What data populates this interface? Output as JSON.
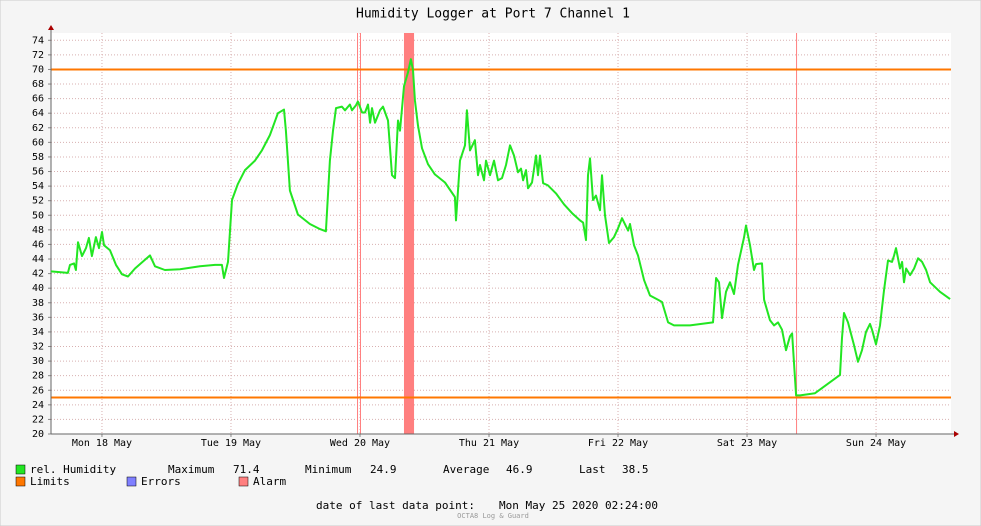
{
  "chart_data": {
    "type": "line",
    "title": "Humidity Logger at Port 7 Channel 1",
    "x": [
      0.105,
      0.236,
      0.252,
      0.283,
      0.298,
      0.314,
      0.345,
      0.376,
      0.399,
      0.422,
      0.453,
      0.477,
      0.5,
      0.516,
      0.562,
      0.609,
      0.655,
      0.702,
      0.756,
      0.795,
      0.872,
      0.911,
      0.988,
      1.105,
      1.26,
      1.376,
      1.43,
      1.446,
      1.477,
      1.508,
      1.554,
      1.609,
      1.686,
      1.74,
      1.802,
      1.864,
      1.911,
      1.926,
      1.957,
      2.019,
      2.112,
      2.19,
      2.236,
      2.267,
      2.291,
      2.314,
      2.36,
      2.384,
      2.422,
      2.438,
      2.469,
      2.484,
      2.516,
      2.539,
      2.562,
      2.578,
      2.593,
      2.616,
      2.655,
      2.678,
      2.717,
      2.748,
      2.771,
      2.795,
      2.81,
      2.841,
      2.872,
      2.895,
      2.911,
      2.926,
      2.95,
      2.981,
      3.027,
      3.081,
      3.159,
      3.236,
      3.244,
      3.275,
      3.314,
      3.329,
      3.353,
      3.391,
      3.415,
      3.43,
      3.461,
      3.477,
      3.508,
      3.539,
      3.57,
      3.601,
      3.632,
      3.663,
      3.694,
      3.725,
      3.748,
      3.764,
      3.787,
      3.802,
      3.833,
      3.864,
      3.88,
      3.895,
      3.919,
      3.957,
      4.019,
      4.081,
      4.143,
      4.205,
      4.229,
      4.252,
      4.267,
      4.283,
      4.306,
      4.329,
      4.36,
      4.376,
      4.399,
      4.43,
      4.469,
      4.5,
      4.531,
      4.578,
      4.593,
      4.624,
      4.655,
      4.702,
      4.748,
      4.81,
      4.841,
      4.888,
      4.934,
      5.058,
      5.236,
      5.26,
      5.283,
      5.306,
      5.337,
      5.368,
      5.399,
      5.43,
      5.477,
      5.492,
      5.523,
      5.554,
      5.57,
      5.616,
      5.632,
      5.678,
      5.709,
      5.74,
      5.771,
      5.802,
      5.833,
      5.849,
      5.88,
      5.911,
      6.027,
      6.128,
      6.221,
      6.236,
      6.252,
      6.283,
      6.329,
      6.36,
      6.391,
      6.422,
      6.453,
      6.469,
      6.5,
      6.531,
      6.562,
      6.593,
      6.624,
      6.64,
      6.655,
      6.686,
      6.702,
      6.717,
      6.733,
      6.764,
      6.795,
      6.826,
      6.857,
      6.888,
      6.919,
      6.996,
      7.074
    ],
    "series": [
      {
        "name": "rel. Humidity",
        "color": "#22e622",
        "values": [
          42.3,
          42.1,
          43.2,
          43.4,
          42.5,
          46.3,
          44.4,
          45.5,
          46.9,
          44.4,
          47.0,
          45.5,
          47.7,
          45.9,
          45.2,
          43.2,
          41.9,
          41.6,
          42.7,
          43.3,
          44.5,
          43.0,
          42.5,
          42.6,
          43.0,
          43.2,
          43.2,
          41.4,
          43.6,
          52.1,
          54.3,
          56.2,
          57.5,
          58.9,
          61.0,
          64.0,
          64.5,
          61.6,
          53.4,
          50.1,
          48.8,
          48.1,
          47.8,
          57.5,
          61.6,
          64.7,
          64.9,
          64.4,
          65.2,
          64.4,
          65.1,
          65.6,
          64.1,
          64.1,
          65.2,
          62.7,
          64.7,
          62.7,
          64.4,
          64.9,
          63.0,
          55.5,
          55.1,
          63.0,
          61.6,
          67.7,
          69.6,
          71.4,
          69.9,
          65.8,
          62.3,
          59.2,
          57.0,
          55.6,
          54.5,
          52.5,
          49.3,
          57.5,
          59.6,
          64.4,
          58.9,
          60.3,
          55.5,
          56.9,
          54.8,
          57.5,
          55.5,
          57.5,
          54.8,
          55.1,
          56.9,
          59.6,
          58.2,
          55.9,
          56.4,
          54.8,
          56.2,
          53.7,
          54.5,
          58.2,
          55.5,
          58.2,
          54.4,
          54.1,
          53.0,
          51.5,
          50.3,
          49.3,
          49.0,
          46.6,
          55.5,
          57.8,
          52.1,
          52.7,
          50.7,
          55.5,
          50.0,
          46.2,
          47.0,
          48.2,
          49.6,
          47.9,
          48.8,
          45.9,
          44.5,
          41.1,
          39.0,
          38.4,
          38.1,
          35.3,
          34.9,
          34.9,
          35.3,
          41.4,
          40.8,
          35.9,
          39.5,
          40.8,
          39.2,
          43.2,
          47.0,
          48.6,
          45.9,
          42.5,
          43.3,
          43.4,
          38.4,
          35.6,
          34.9,
          35.3,
          34.3,
          31.5,
          33.4,
          33.8,
          25.3,
          25.3,
          25.6,
          26.9,
          28.1,
          33.2,
          36.6,
          35.3,
          32.2,
          29.9,
          31.5,
          34.0,
          35.1,
          34.3,
          32.3,
          34.9,
          39.7,
          43.8,
          43.6,
          44.5,
          45.5,
          42.7,
          43.6,
          40.8,
          42.7,
          41.8,
          42.7,
          44.1,
          43.6,
          42.5,
          40.8,
          39.5,
          38.5
        ]
      }
    ],
    "xlim": [
      0.105,
      7.081
    ],
    "ylim": [
      20,
      75
    ],
    "xticks": [
      {
        "value": 0.5,
        "label": "Mon 18 May"
      },
      {
        "value": 1.5,
        "label": "Tue 19 May"
      },
      {
        "value": 2.5,
        "label": "Wed 20 May"
      },
      {
        "value": 3.5,
        "label": "Thu 21 May"
      },
      {
        "value": 4.5,
        "label": "Fri 22 May"
      },
      {
        "value": 5.5,
        "label": "Sat 23 May"
      },
      {
        "value": 6.5,
        "label": "Sun 24 May"
      }
    ],
    "yticks": [
      20,
      22,
      24,
      26,
      28,
      30,
      32,
      34,
      36,
      38,
      40,
      42,
      44,
      46,
      48,
      50,
      52,
      54,
      56,
      58,
      60,
      62,
      64,
      66,
      68,
      70,
      72,
      74
    ],
    "grid": true,
    "limits": {
      "name": "Limits",
      "color": "#ff7700",
      "values": [
        70,
        25
      ]
    },
    "errors": {
      "name": "Errors",
      "color": "#7f7fff"
    },
    "alarm": {
      "name": "Alarm",
      "color": "#ff7f7f",
      "spans": [
        [
          2.477,
          2.477
        ],
        [
          2.5,
          2.5
        ],
        [
          2.841,
          2.919
        ],
        [
          5.88,
          5.88
        ]
      ]
    },
    "stats": [
      {
        "label": "Maximum",
        "value": 71.4
      },
      {
        "label": "Minimum",
        "value": 24.9
      },
      {
        "label": "Average",
        "value": 46.9
      },
      {
        "label": "Last",
        "value": 38.5
      }
    ]
  },
  "footer": {
    "label": "date of last data point:",
    "value": "Mon May 25 2020 02:24:00"
  },
  "watermark": "OCTA8 Log & Guard"
}
